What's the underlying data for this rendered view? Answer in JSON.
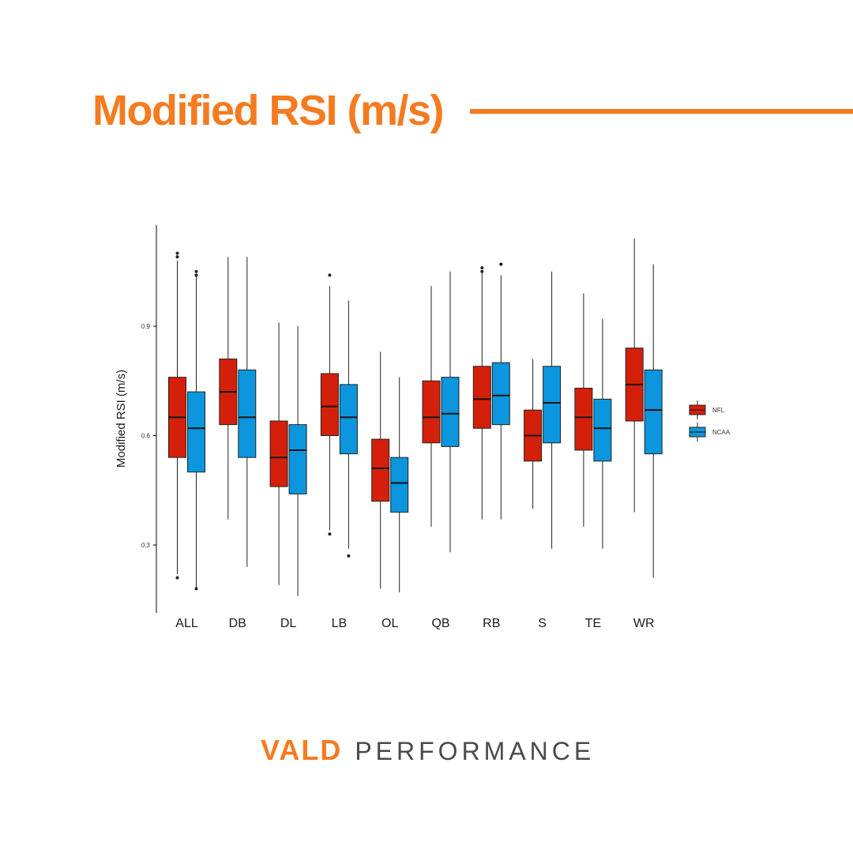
{
  "header": {
    "title": "Modified RSI (m/s)"
  },
  "brand": {
    "primary": "VALD",
    "secondary": "PERFORMANCE"
  },
  "colors": {
    "accent": "#F47B20",
    "nfl": "#D4200A",
    "ncaa": "#0C96DD",
    "brand_gray": "#4a4a4a"
  },
  "chart_data": {
    "type": "boxplot",
    "title": "",
    "xlabel": "",
    "ylabel": "Modified RSI (m/s)",
    "ylim": [
      0.12,
      1.18
    ],
    "yticks": [
      0.3,
      0.6,
      0.9
    ],
    "ytick_labels": [
      "0.3",
      "0.6",
      "0.9"
    ],
    "grid": false,
    "legend_position": "right",
    "categories": [
      "ALL",
      "DB",
      "DL",
      "LB",
      "OL",
      "QB",
      "RB",
      "S",
      "TE",
      "WR"
    ],
    "series": [
      {
        "name": "NFL",
        "color": "#D4200A",
        "boxes": [
          {
            "whisker_low": 0.22,
            "q1": 0.54,
            "median": 0.65,
            "q3": 0.76,
            "whisker_high": 1.08,
            "outliers": [
              0.21,
              1.09,
              1.1
            ]
          },
          {
            "whisker_low": 0.37,
            "q1": 0.63,
            "median": 0.72,
            "q3": 0.81,
            "whisker_high": 1.09,
            "outliers": []
          },
          {
            "whisker_low": 0.19,
            "q1": 0.46,
            "median": 0.54,
            "q3": 0.64,
            "whisker_high": 0.91,
            "outliers": []
          },
          {
            "whisker_low": 0.34,
            "q1": 0.6,
            "median": 0.68,
            "q3": 0.77,
            "whisker_high": 1.01,
            "outliers": [
              0.33,
              1.04
            ]
          },
          {
            "whisker_low": 0.18,
            "q1": 0.42,
            "median": 0.51,
            "q3": 0.59,
            "whisker_high": 0.83,
            "outliers": []
          },
          {
            "whisker_low": 0.35,
            "q1": 0.58,
            "median": 0.65,
            "q3": 0.75,
            "whisker_high": 1.01,
            "outliers": []
          },
          {
            "whisker_low": 0.37,
            "q1": 0.62,
            "median": 0.7,
            "q3": 0.79,
            "whisker_high": 1.05,
            "outliers": [
              1.05,
              1.06
            ]
          },
          {
            "whisker_low": 0.4,
            "q1": 0.53,
            "median": 0.6,
            "q3": 0.67,
            "whisker_high": 0.81,
            "outliers": []
          },
          {
            "whisker_low": 0.35,
            "q1": 0.56,
            "median": 0.65,
            "q3": 0.73,
            "whisker_high": 0.99,
            "outliers": []
          },
          {
            "whisker_low": 0.39,
            "q1": 0.64,
            "median": 0.74,
            "q3": 0.84,
            "whisker_high": 1.14,
            "outliers": []
          }
        ]
      },
      {
        "name": "NCAA",
        "color": "#0C96DD",
        "boxes": [
          {
            "whisker_low": 0.18,
            "q1": 0.5,
            "median": 0.62,
            "q3": 0.72,
            "whisker_high": 1.04,
            "outliers": [
              0.18,
              1.04,
              1.05
            ]
          },
          {
            "whisker_low": 0.24,
            "q1": 0.54,
            "median": 0.65,
            "q3": 0.78,
            "whisker_high": 1.09,
            "outliers": []
          },
          {
            "whisker_low": 0.16,
            "q1": 0.44,
            "median": 0.56,
            "q3": 0.63,
            "whisker_high": 0.9,
            "outliers": []
          },
          {
            "whisker_low": 0.29,
            "q1": 0.55,
            "median": 0.65,
            "q3": 0.74,
            "whisker_high": 0.97,
            "outliers": [
              0.27
            ]
          },
          {
            "whisker_low": 0.17,
            "q1": 0.39,
            "median": 0.47,
            "q3": 0.54,
            "whisker_high": 0.76,
            "outliers": []
          },
          {
            "whisker_low": 0.28,
            "q1": 0.57,
            "median": 0.66,
            "q3": 0.76,
            "whisker_high": 1.05,
            "outliers": []
          },
          {
            "whisker_low": 0.37,
            "q1": 0.63,
            "median": 0.71,
            "q3": 0.8,
            "whisker_high": 1.04,
            "outliers": [
              1.07,
              1.07
            ]
          },
          {
            "whisker_low": 0.29,
            "q1": 0.58,
            "median": 0.69,
            "q3": 0.79,
            "whisker_high": 1.05,
            "outliers": []
          },
          {
            "whisker_low": 0.29,
            "q1": 0.53,
            "median": 0.62,
            "q3": 0.7,
            "whisker_high": 0.92,
            "outliers": []
          },
          {
            "whisker_low": 0.21,
            "q1": 0.55,
            "median": 0.67,
            "q3": 0.78,
            "whisker_high": 1.07,
            "outliers": []
          }
        ]
      }
    ]
  }
}
